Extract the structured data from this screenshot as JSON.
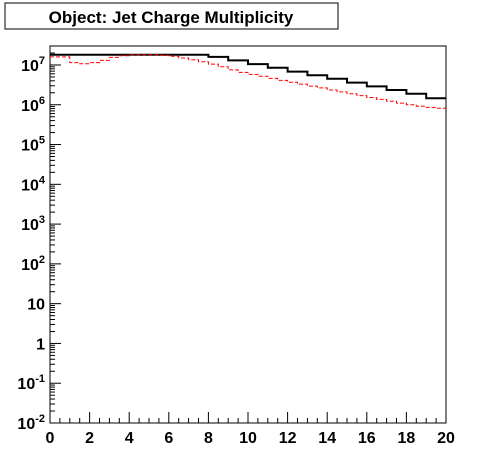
{
  "chart_data": {
    "type": "line",
    "title": "Object: Jet Charge Multiplicity",
    "xlim": [
      0,
      20
    ],
    "ylim": [
      0.01,
      30000000
    ],
    "log_y": true,
    "grid": false,
    "x_ticks": [
      0,
      2,
      4,
      6,
      8,
      10,
      12,
      14,
      16,
      18,
      20
    ],
    "y_ticks": [
      {
        "value": 0.01,
        "mantissa": "10",
        "exp": "-2"
      },
      {
        "value": 0.1,
        "mantissa": "10",
        "exp": "-1"
      },
      {
        "value": 1,
        "mantissa": "1",
        "exp": ""
      },
      {
        "value": 10,
        "mantissa": "10",
        "exp": ""
      },
      {
        "value": 100,
        "mantissa": "10",
        "exp": "2"
      },
      {
        "value": 1000,
        "mantissa": "10",
        "exp": "3"
      },
      {
        "value": 10000,
        "mantissa": "10",
        "exp": "4"
      },
      {
        "value": 100000,
        "mantissa": "10",
        "exp": "5"
      },
      {
        "value": 1000000,
        "mantissa": "10",
        "exp": "6"
      },
      {
        "value": 10000000,
        "mantissa": "10",
        "exp": "7"
      }
    ],
    "series": [
      {
        "color": "#000000",
        "style": "solid",
        "bin_edges": [
          0,
          2,
          4,
          6,
          8,
          9,
          10,
          11,
          12,
          13,
          14,
          15,
          16,
          17,
          18,
          19,
          20
        ],
        "values": [
          18000000,
          18000000,
          18000000,
          18000000,
          16000000,
          13000000,
          10500000,
          8500000,
          6800000,
          5500000,
          4500000,
          3600000,
          2900000,
          2350000,
          1900000,
          1450000
        ]
      },
      {
        "color": "#ff0000",
        "style": "dashed",
        "bin_edges": [
          0,
          0.5,
          1,
          1.5,
          2,
          2.5,
          3,
          3.5,
          4,
          4.5,
          5,
          5.5,
          6,
          6.5,
          7,
          7.5,
          8,
          8.5,
          9,
          9.5,
          10,
          10.5,
          11,
          11.5,
          12,
          12.5,
          13,
          13.5,
          14,
          14.5,
          15,
          15.5,
          16,
          16.5,
          17,
          17.5,
          18,
          18.5,
          19,
          19.5,
          20
        ],
        "values": [
          16000000,
          16000000,
          11500000,
          10800000,
          11500000,
          13000000,
          15500000,
          17000000,
          18000000,
          18000000,
          18000000,
          17500000,
          16500000,
          15000000,
          13500000,
          12000000,
          10500000,
          9000000,
          7500000,
          6500000,
          5800000,
          5200000,
          4600000,
          4100000,
          3700000,
          3300000,
          2950000,
          2650000,
          2350000,
          2100000,
          1900000,
          1700000,
          1520000,
          1360000,
          1220000,
          1100000,
          1000000,
          920000,
          860000,
          820000
        ]
      }
    ]
  }
}
